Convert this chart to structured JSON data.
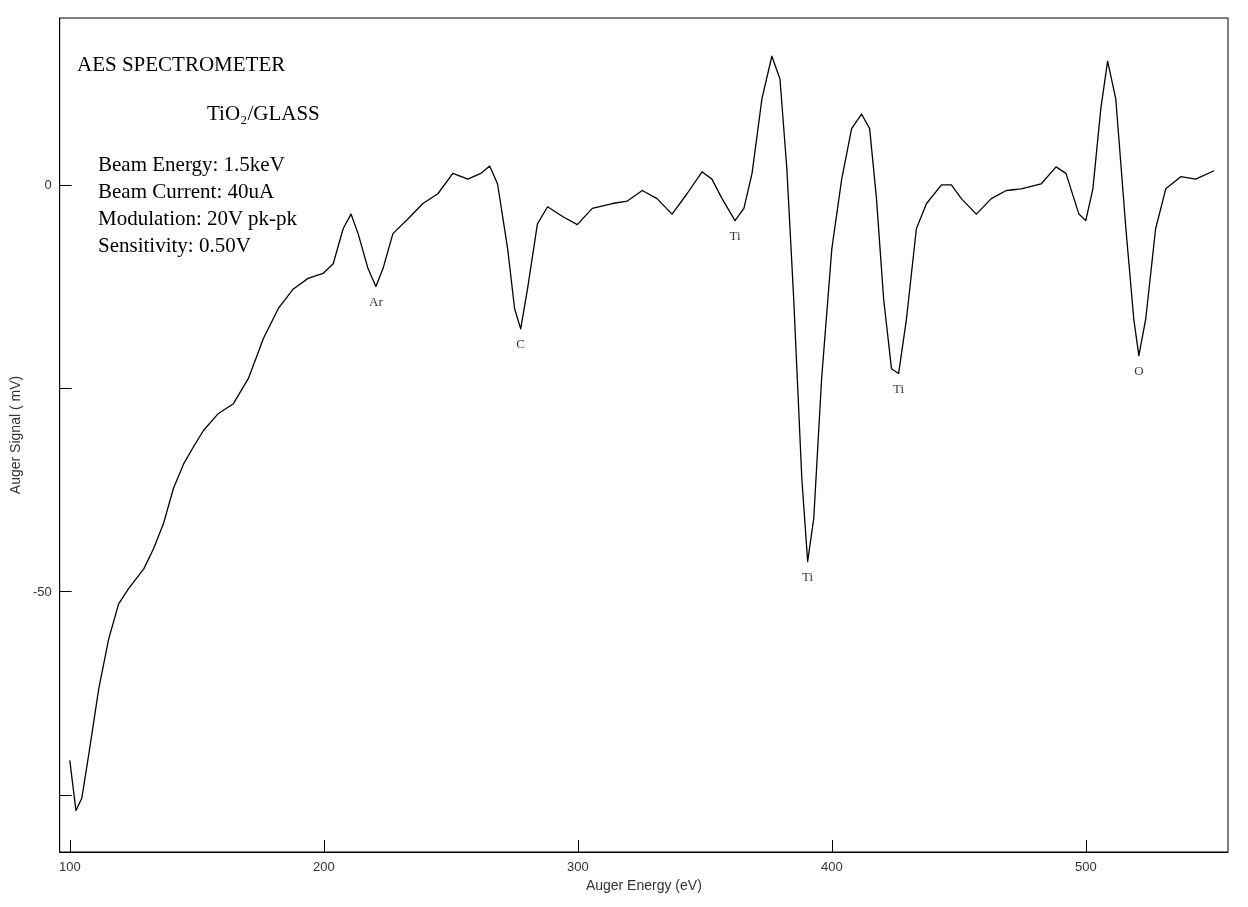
{
  "chart_data": {
    "type": "line",
    "title": "AES SPECTROMETER",
    "subtitle": "TiO₂/GLASS",
    "xlabel": "Auger Energy (eV)",
    "ylabel": "Auger Signal ( mV)",
    "x": [
      100,
      102.4,
      104.7,
      107.5,
      111.4,
      115.3,
      119.2,
      123.2,
      129.1,
      133,
      136.9,
      140.8,
      144.8,
      148.7,
      152.6,
      158.5,
      164.4,
      170.3,
      176.2,
      182.1,
      188,
      193.8,
      199.7,
      203.7,
      207.6,
      210.7,
      213.5,
      217.4,
      220.5,
      223.3,
      227.2,
      233.1,
      239,
      244.9,
      250.8,
      256.7,
      261.8,
      265.3,
      268.4,
      272.4,
      275.1,
      277.5,
      280.2,
      284.1,
      288.1,
      294,
      299.8,
      305.7,
      313.6,
      319.5,
      325.4,
      331.2,
      337.1,
      343,
      348.9,
      352.8,
      356.8,
      361.9,
      365.4,
      368.6,
      372.5,
      376.4,
      379.6,
      382.3,
      385,
      388.2,
      390.5,
      392.9,
      396,
      400,
      403.9,
      407.8,
      411.7,
      414.9,
      417.6,
      420.4,
      423.5,
      426.3,
      429.4,
      433.3,
      437.3,
      443.2,
      447.1,
      451,
      456.9,
      462.8,
      468.7,
      474.6,
      482.4,
      488.3,
      492.2,
      497.3,
      500,
      502.8,
      505.9,
      508.6,
      511.8,
      515.8,
      518.9,
      520.9,
      523.6,
      527.5,
      531.5,
      537.4,
      543.3,
      550.3
    ],
    "series": [
      {
        "color": "#000000",
        "values": [
          -70.8,
          -76.9,
          -75.4,
          -69.9,
          -61.9,
          -55.8,
          -51.5,
          -49.6,
          -47.2,
          -44.7,
          -41.6,
          -37.3,
          -34.3,
          -32.2,
          -30.2,
          -28.1,
          -26.9,
          -23.8,
          -18.9,
          -15.2,
          -12.8,
          -11.5,
          -10.9,
          -9.7,
          -5.4,
          -3.6,
          -6,
          -10.3,
          -12.5,
          -10.3,
          -6,
          -4.2,
          -2.3,
          -1.1,
          1.4,
          0.7,
          1.4,
          2.3,
          0.1,
          -7.9,
          -15.2,
          -17.7,
          -12.8,
          -4.8,
          -2.7,
          -3.9,
          -4.9,
          -2.9,
          -2.3,
          -2,
          -0.7,
          -1.7,
          -3.6,
          -1.1,
          1.6,
          0.7,
          -1.7,
          -4.4,
          -2.9,
          1.4,
          10.6,
          15.8,
          13,
          2,
          -14,
          -36.1,
          -46.3,
          -41,
          -23.8,
          -7.9,
          0.7,
          6.9,
          8.7,
          6.9,
          -1.7,
          -14,
          -22.6,
          -23.2,
          -16.5,
          -5.4,
          -2.3,
          0,
          0,
          -1.7,
          -3.6,
          -1.7,
          -0.7,
          -0.5,
          0.1,
          2.2,
          1.4,
          -3.6,
          -4.4,
          -0.5,
          9.3,
          15.2,
          10.6,
          -5.4,
          -16.5,
          -21,
          -16.5,
          -5.4,
          -0.5,
          1,
          0.7,
          1.7
        ]
      }
    ],
    "xlim": [
      96,
      556
    ],
    "ylim": [
      -82,
      20.5
    ],
    "xticks": [
      100,
      200,
      300,
      400,
      500
    ],
    "yticks": [
      {
        "value": -75,
        "label": null
      },
      -50,
      {
        "value": -25,
        "label": null
      },
      0
    ],
    "marker": "none",
    "line_style": "solid",
    "annotations": [
      {
        "text": "Ar",
        "x": 220.5,
        "y": -12.5
      },
      {
        "text": "C",
        "x": 277.5,
        "y": -17.7
      },
      {
        "text": "Ti",
        "x": 361.9,
        "y": -4.4
      },
      {
        "text": "Ti",
        "x": 390.5,
        "y": -46.3
      },
      {
        "text": "Ti",
        "x": 426.3,
        "y": -23.2
      },
      {
        "text": "O",
        "x": 520.9,
        "y": -21
      },
      "Beam Energy: 1.5keV",
      "Beam Current: 40uA",
      "Modulation: 20V pk-pk",
      "Sensitivity: 0.50V"
    ]
  }
}
